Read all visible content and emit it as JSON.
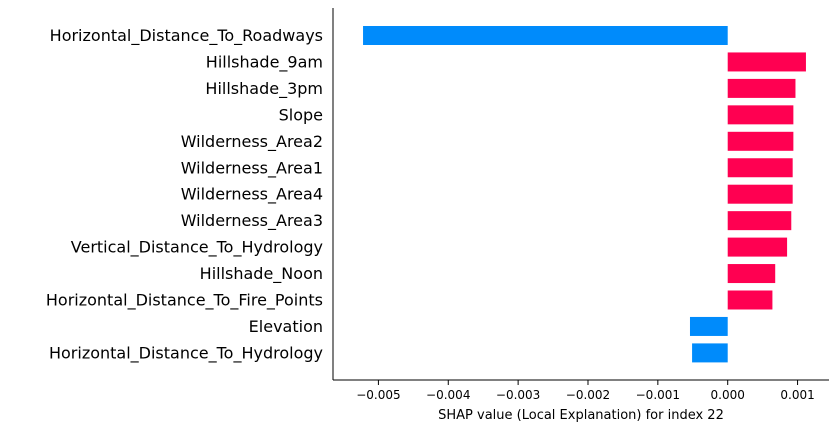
{
  "chart_data": {
    "type": "bar",
    "orientation": "horizontal",
    "title": "",
    "xlabel": "SHAP value (Local Explanation) for index 22",
    "ylabel": "",
    "xlim": [
      -0.00565,
      0.00145
    ],
    "xticks": [
      -0.005,
      -0.004,
      -0.003,
      -0.002,
      -0.001,
      0.0,
      0.001
    ],
    "xtick_labels": [
      "−0.005",
      "−0.004",
      "−0.003",
      "−0.002",
      "−0.001",
      "0.000",
      "0.001"
    ],
    "grid": false,
    "legend": "none",
    "categories": [
      "Horizontal_Distance_To_Roadways",
      "Hillshade_9am",
      "Hillshade_3pm",
      "Slope",
      "Wilderness_Area2",
      "Wilderness_Area1",
      "Wilderness_Area4",
      "Wilderness_Area3",
      "Vertical_Distance_To_Hydrology",
      "Hillshade_Noon",
      "Horizontal_Distance_To_Fire_Points",
      "Elevation",
      "Horizontal_Distance_To_Hydrology"
    ],
    "values": [
      -0.00522,
      0.00112,
      0.00097,
      0.00094,
      0.00094,
      0.00093,
      0.00093,
      0.00091,
      0.00085,
      0.00068,
      0.00064,
      -0.00054,
      -0.00051
    ],
    "colors": {
      "positive": "#ff0051",
      "negative": "#008bfb"
    }
  }
}
